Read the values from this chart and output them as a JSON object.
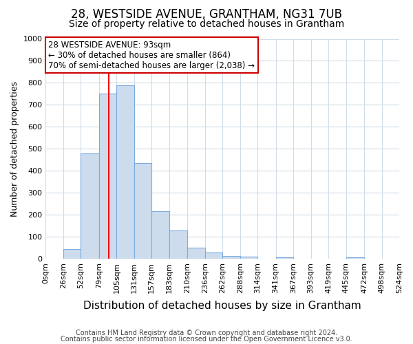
{
  "title": "28, WESTSIDE AVENUE, GRANTHAM, NG31 7UB",
  "subtitle": "Size of property relative to detached houses in Grantham",
  "xlabel": "Distribution of detached houses by size in Grantham",
  "ylabel": "Number of detached properties",
  "footnote1": "Contains HM Land Registry data © Crown copyright and database right 2024.",
  "footnote2": "Contains public sector information licensed under the Open Government Licence v3.0.",
  "bin_edges": [
    0,
    26,
    52,
    79,
    105,
    131,
    157,
    183,
    210,
    236,
    262,
    288,
    314,
    341,
    367,
    393,
    419,
    445,
    472,
    498,
    524
  ],
  "bin_labels": [
    "0sqm",
    "26sqm",
    "52sqm",
    "79sqm",
    "105sqm",
    "131sqm",
    "157sqm",
    "183sqm",
    "210sqm",
    "236sqm",
    "262sqm",
    "288sqm",
    "314sqm",
    "341sqm",
    "367sqm",
    "393sqm",
    "419sqm",
    "445sqm",
    "472sqm",
    "498sqm",
    "524sqm"
  ],
  "bar_heights": [
    0,
    45,
    480,
    750,
    790,
    435,
    218,
    128,
    50,
    28,
    15,
    10,
    0,
    8,
    0,
    0,
    0,
    8,
    0,
    0
  ],
  "bar_color": "#cddcec",
  "bar_edge_color": "#7aabe0",
  "property_size": 93,
  "property_line_color": "red",
  "annotation_text": "28 WESTSIDE AVENUE: 93sqm\n← 30% of detached houses are smaller (864)\n70% of semi-detached houses are larger (2,038) →",
  "annotation_box_edge": "#cc0000",
  "ylim": [
    0,
    1000
  ],
  "yticks": [
    0,
    100,
    200,
    300,
    400,
    500,
    600,
    700,
    800,
    900,
    1000
  ],
  "background_color": "#ffffff",
  "grid_color": "#d0dce8",
  "title_fontsize": 12,
  "subtitle_fontsize": 10,
  "xlabel_fontsize": 11,
  "ylabel_fontsize": 9,
  "tick_fontsize": 8,
  "footnote_fontsize": 7
}
